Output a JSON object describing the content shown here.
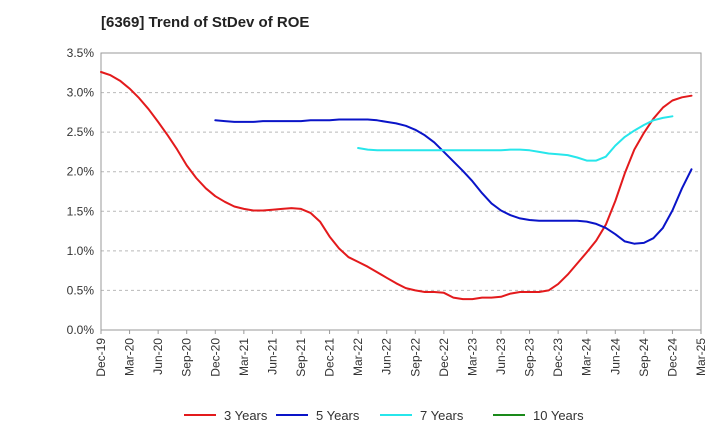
{
  "chart_data": {
    "type": "line",
    "title": "[6369]  Trend of StDev of ROE",
    "xlabel": "",
    "ylabel": "",
    "x_ticks": [
      "Dec-19",
      "Mar-20",
      "Jun-20",
      "Sep-20",
      "Dec-20",
      "Mar-21",
      "Jun-21",
      "Sep-21",
      "Dec-21",
      "Mar-22",
      "Jun-22",
      "Sep-22",
      "Dec-22",
      "Mar-23",
      "Jun-23",
      "Sep-23",
      "Dec-23",
      "Mar-24",
      "Jun-24",
      "Sep-24",
      "Dec-24",
      "Mar-25"
    ],
    "y_ticks": [
      "0.0%",
      "0.5%",
      "1.0%",
      "1.5%",
      "2.0%",
      "2.5%",
      "3.0%",
      "3.5%"
    ],
    "ylim": [
      0,
      3.5
    ],
    "y_unit": "%",
    "grid": "horizontal dashed",
    "legend_position": "bottom",
    "series": [
      {
        "name": "3 Years",
        "color": "#e31a1c",
        "points": [
          [
            "Dec-19",
            3.26
          ],
          [
            "Jan-20",
            3.22
          ],
          [
            "Feb-20",
            3.15
          ],
          [
            "Mar-20",
            3.05
          ],
          [
            "Apr-20",
            2.93
          ],
          [
            "May-20",
            2.79
          ],
          [
            "Jun-20",
            2.63
          ],
          [
            "Jul-20",
            2.46
          ],
          [
            "Aug-20",
            2.28
          ],
          [
            "Sep-20",
            2.08
          ],
          [
            "Oct-20",
            1.92
          ],
          [
            "Nov-20",
            1.79
          ],
          [
            "Dec-20",
            1.69
          ],
          [
            "Jan-21",
            1.62
          ],
          [
            "Feb-21",
            1.56
          ],
          [
            "Mar-21",
            1.53
          ],
          [
            "Apr-21",
            1.51
          ],
          [
            "May-21",
            1.51
          ],
          [
            "Jun-21",
            1.52
          ],
          [
            "Jul-21",
            1.53
          ],
          [
            "Aug-21",
            1.54
          ],
          [
            "Sep-21",
            1.53
          ],
          [
            "Oct-21",
            1.48
          ],
          [
            "Nov-21",
            1.37
          ],
          [
            "Dec-21",
            1.18
          ],
          [
            "Jan-22",
            1.03
          ],
          [
            "Feb-22",
            0.92
          ],
          [
            "Mar-22",
            0.86
          ],
          [
            "Apr-22",
            0.8
          ],
          [
            "May-22",
            0.73
          ],
          [
            "Jun-22",
            0.66
          ],
          [
            "Jul-22",
            0.59
          ],
          [
            "Aug-22",
            0.53
          ],
          [
            "Sep-22",
            0.5
          ],
          [
            "Oct-22",
            0.48
          ],
          [
            "Nov-22",
            0.48
          ],
          [
            "Dec-22",
            0.47
          ],
          [
            "Jan-23",
            0.41
          ],
          [
            "Feb-23",
            0.39
          ],
          [
            "Mar-23",
            0.39
          ],
          [
            "Apr-23",
            0.41
          ],
          [
            "May-23",
            0.41
          ],
          [
            "Jun-23",
            0.42
          ],
          [
            "Jul-23",
            0.46
          ],
          [
            "Aug-23",
            0.48
          ],
          [
            "Sep-23",
            0.48
          ],
          [
            "Oct-23",
            0.48
          ],
          [
            "Nov-23",
            0.5
          ],
          [
            "Dec-23",
            0.58
          ],
          [
            "Jan-24",
            0.7
          ],
          [
            "Feb-24",
            0.84
          ],
          [
            "Mar-24",
            0.98
          ],
          [
            "Apr-24",
            1.13
          ],
          [
            "May-24",
            1.33
          ],
          [
            "Jun-24",
            1.63
          ],
          [
            "Jul-24",
            1.98
          ],
          [
            "Aug-24",
            2.28
          ],
          [
            "Sep-24",
            2.49
          ],
          [
            "Oct-24",
            2.67
          ],
          [
            "Nov-24",
            2.81
          ],
          [
            "Dec-24",
            2.9
          ],
          [
            "Jan-25",
            2.94
          ],
          [
            "Feb-25",
            2.96
          ]
        ]
      },
      {
        "name": "5 Years",
        "color": "#0a14c8",
        "points": [
          [
            "Dec-20",
            2.65
          ],
          [
            "Jan-21",
            2.64
          ],
          [
            "Feb-21",
            2.63
          ],
          [
            "Mar-21",
            2.63
          ],
          [
            "Apr-21",
            2.63
          ],
          [
            "May-21",
            2.64
          ],
          [
            "Jun-21",
            2.64
          ],
          [
            "Jul-21",
            2.64
          ],
          [
            "Aug-21",
            2.64
          ],
          [
            "Sep-21",
            2.64
          ],
          [
            "Oct-21",
            2.65
          ],
          [
            "Nov-21",
            2.65
          ],
          [
            "Dec-21",
            2.65
          ],
          [
            "Jan-22",
            2.66
          ],
          [
            "Feb-22",
            2.66
          ],
          [
            "Mar-22",
            2.66
          ],
          [
            "Apr-22",
            2.66
          ],
          [
            "May-22",
            2.65
          ],
          [
            "Jun-22",
            2.63
          ],
          [
            "Jul-22",
            2.61
          ],
          [
            "Aug-22",
            2.58
          ],
          [
            "Sep-22",
            2.53
          ],
          [
            "Oct-22",
            2.46
          ],
          [
            "Nov-22",
            2.37
          ],
          [
            "Dec-22",
            2.25
          ],
          [
            "Jan-23",
            2.13
          ],
          [
            "Feb-23",
            2.01
          ],
          [
            "Mar-23",
            1.88
          ],
          [
            "Apr-23",
            1.73
          ],
          [
            "May-23",
            1.6
          ],
          [
            "Jun-23",
            1.51
          ],
          [
            "Jul-23",
            1.45
          ],
          [
            "Aug-23",
            1.41
          ],
          [
            "Sep-23",
            1.39
          ],
          [
            "Oct-23",
            1.38
          ],
          [
            "Nov-23",
            1.38
          ],
          [
            "Dec-23",
            1.38
          ],
          [
            "Jan-24",
            1.38
          ],
          [
            "Feb-24",
            1.38
          ],
          [
            "Mar-24",
            1.37
          ],
          [
            "Apr-24",
            1.34
          ],
          [
            "May-24",
            1.29
          ],
          [
            "Jun-24",
            1.21
          ],
          [
            "Jul-24",
            1.12
          ],
          [
            "Aug-24",
            1.09
          ],
          [
            "Sep-24",
            1.1
          ],
          [
            "Oct-24",
            1.16
          ],
          [
            "Nov-24",
            1.29
          ],
          [
            "Dec-24",
            1.51
          ],
          [
            "Jan-25",
            1.79
          ],
          [
            "Feb-25",
            2.03
          ]
        ]
      },
      {
        "name": "7 Years",
        "color": "#27e6eb",
        "points": [
          [
            "Mar-22",
            2.3
          ],
          [
            "Apr-22",
            2.28
          ],
          [
            "May-22",
            2.27
          ],
          [
            "Jun-22",
            2.27
          ],
          [
            "Jul-22",
            2.27
          ],
          [
            "Aug-22",
            2.27
          ],
          [
            "Sep-22",
            2.27
          ],
          [
            "Oct-22",
            2.27
          ],
          [
            "Nov-22",
            2.27
          ],
          [
            "Dec-22",
            2.27
          ],
          [
            "Jan-23",
            2.27
          ],
          [
            "Feb-23",
            2.27
          ],
          [
            "Mar-23",
            2.27
          ],
          [
            "Apr-23",
            2.27
          ],
          [
            "May-23",
            2.27
          ],
          [
            "Jun-23",
            2.27
          ],
          [
            "Jul-23",
            2.28
          ],
          [
            "Aug-23",
            2.28
          ],
          [
            "Sep-23",
            2.27
          ],
          [
            "Oct-23",
            2.25
          ],
          [
            "Nov-23",
            2.23
          ],
          [
            "Dec-23",
            2.22
          ],
          [
            "Jan-24",
            2.21
          ],
          [
            "Feb-24",
            2.18
          ],
          [
            "Mar-24",
            2.14
          ],
          [
            "Apr-24",
            2.14
          ],
          [
            "May-24",
            2.19
          ],
          [
            "Jun-24",
            2.33
          ],
          [
            "Jul-24",
            2.44
          ],
          [
            "Aug-24",
            2.52
          ],
          [
            "Sep-24",
            2.59
          ],
          [
            "Oct-24",
            2.65
          ],
          [
            "Nov-24",
            2.68
          ],
          [
            "Dec-24",
            2.7
          ]
        ]
      },
      {
        "name": "10 Years",
        "color": "#1a8a1a",
        "points": []
      }
    ]
  }
}
